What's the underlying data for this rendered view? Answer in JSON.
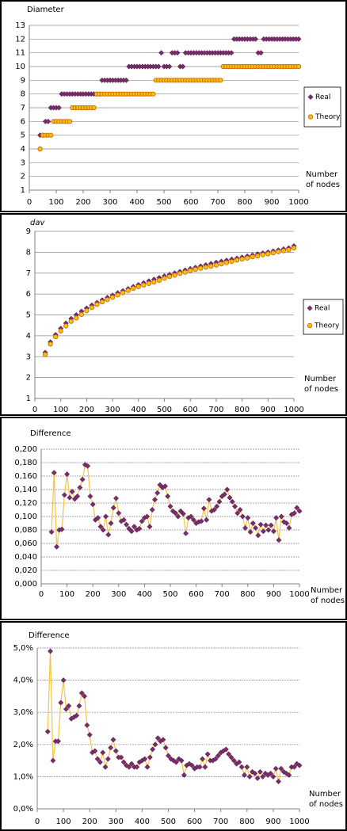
{
  "chart_data": [
    {
      "type": "scatter",
      "y_label": "Diameter",
      "x_label": [
        "Number",
        "of nodes"
      ],
      "x": [
        40,
        50,
        60,
        70,
        80,
        90,
        100,
        110,
        120,
        130,
        140,
        150,
        160,
        170,
        180,
        190,
        200,
        210,
        220,
        230,
        240,
        250,
        260,
        270,
        280,
        290,
        300,
        310,
        320,
        330,
        340,
        350,
        360,
        370,
        380,
        390,
        400,
        410,
        420,
        430,
        440,
        450,
        460,
        470,
        480,
        490,
        500,
        510,
        520,
        530,
        540,
        550,
        560,
        570,
        580,
        590,
        600,
        610,
        620,
        630,
        640,
        650,
        660,
        670,
        680,
        690,
        700,
        710,
        720,
        730,
        740,
        750,
        760,
        770,
        780,
        790,
        800,
        810,
        820,
        830,
        840,
        850,
        860,
        870,
        880,
        890,
        900,
        910,
        920,
        930,
        940,
        950,
        960,
        970,
        980,
        990,
        1000
      ],
      "series": [
        {
          "name": "Real",
          "color": "#7b2d6b",
          "marker": "diamond",
          "values": [
            5,
            5,
            6,
            6,
            7,
            7,
            7,
            7,
            8,
            8,
            8,
            8,
            8,
            8,
            8,
            8,
            8,
            8,
            8,
            8,
            8,
            8,
            8,
            9,
            9,
            9,
            9,
            9,
            9,
            9,
            9,
            9,
            9,
            10,
            10,
            10,
            10,
            10,
            10,
            10,
            10,
            10,
            10,
            10,
            10,
            11,
            10,
            10,
            10,
            11,
            11,
            11,
            10,
            10,
            11,
            11,
            11,
            11,
            11,
            11,
            11,
            11,
            11,
            11,
            11,
            11,
            11,
            11,
            11,
            11,
            11,
            11,
            12,
            12,
            12,
            12,
            12,
            12,
            12,
            12,
            12,
            11,
            11,
            12,
            12,
            12,
            12,
            12,
            12,
            12,
            12,
            12,
            12,
            12,
            12,
            12,
            12
          ]
        },
        {
          "name": "Theory",
          "color": "#ffc000",
          "marker": "circle",
          "values": [
            4,
            5,
            5,
            5,
            5,
            6,
            6,
            6,
            6,
            6,
            6,
            6,
            7,
            7,
            7,
            7,
            7,
            7,
            7,
            7,
            7,
            8,
            8,
            8,
            8,
            8,
            8,
            8,
            8,
            8,
            8,
            8,
            8,
            8,
            8,
            8,
            8,
            8,
            8,
            8,
            8,
            8,
            8,
            9,
            9,
            9,
            9,
            9,
            9,
            9,
            9,
            9,
            9,
            9,
            9,
            9,
            9,
            9,
            9,
            9,
            9,
            9,
            9,
            9,
            9,
            9,
            9,
            9,
            10,
            10,
            10,
            10,
            10,
            10,
            10,
            10,
            10,
            10,
            10,
            10,
            10,
            10,
            10,
            10,
            10,
            10,
            10,
            10,
            10,
            10,
            10,
            10,
            10,
            10,
            10,
            10,
            10
          ]
        }
      ],
      "xlim": [
        0,
        1000
      ],
      "xticks": [
        0,
        100,
        200,
        300,
        400,
        500,
        600,
        700,
        800,
        900,
        1000
      ],
      "ylim": [
        1,
        13
      ],
      "yticks": [
        1,
        2,
        3,
        4,
        5,
        6,
        7,
        8,
        9,
        10,
        11,
        12,
        13
      ],
      "grid": true,
      "legend": "right"
    },
    {
      "type": "scatter",
      "y_label": "dav",
      "x_label": [
        "Number",
        "of nodes"
      ],
      "x": [
        40,
        60,
        80,
        100,
        120,
        140,
        160,
        180,
        200,
        220,
        240,
        260,
        280,
        300,
        320,
        340,
        360,
        380,
        400,
        420,
        440,
        460,
        480,
        500,
        520,
        540,
        560,
        580,
        600,
        620,
        640,
        660,
        680,
        700,
        720,
        740,
        760,
        780,
        800,
        820,
        840,
        860,
        880,
        900,
        920,
        940,
        960,
        980,
        1000
      ],
      "series": [
        {
          "name": "Real",
          "color": "#7b2d6b",
          "marker": "diamond",
          "values": [
            3.2,
            3.7,
            4.05,
            4.35,
            4.6,
            4.82,
            5.0,
            5.17,
            5.32,
            5.46,
            5.59,
            5.71,
            5.83,
            5.94,
            6.05,
            6.15,
            6.25,
            6.35,
            6.44,
            6.53,
            6.62,
            6.7,
            6.78,
            6.86,
            6.93,
            7.0,
            7.07,
            7.14,
            7.21,
            7.27,
            7.33,
            7.39,
            7.45,
            7.51,
            7.56,
            7.61,
            7.66,
            7.71,
            7.76,
            7.81,
            7.86,
            7.91,
            7.96,
            8.0,
            8.05,
            8.1,
            8.15,
            8.2,
            8.3
          ]
        },
        {
          "name": "Theory",
          "color": "#ffc000",
          "marker": "circle",
          "values": [
            3.1,
            3.6,
            3.95,
            4.23,
            4.47,
            4.69,
            4.85,
            5.02,
            5.2,
            5.35,
            5.5,
            5.62,
            5.73,
            5.84,
            5.95,
            6.06,
            6.17,
            6.27,
            6.35,
            6.43,
            6.5,
            6.57,
            6.65,
            6.75,
            6.83,
            6.9,
            6.98,
            7.04,
            7.12,
            7.18,
            7.23,
            7.28,
            7.33,
            7.38,
            7.44,
            7.5,
            7.55,
            7.62,
            7.67,
            7.72,
            7.78,
            7.82,
            7.88,
            7.92,
            7.97,
            8.02,
            8.07,
            8.12,
            8.2
          ]
        }
      ],
      "xlim": [
        0,
        1000
      ],
      "xticks": [
        0,
        100,
        200,
        300,
        400,
        500,
        600,
        700,
        800,
        900,
        1000
      ],
      "ylim": [
        1,
        9
      ],
      "yticks": [
        1,
        2,
        3,
        4,
        5,
        6,
        7,
        8,
        9
      ],
      "grid": true,
      "legend": "right"
    },
    {
      "type": "line",
      "y_label": "Difference",
      "x_label": [
        "Number",
        "of nodes"
      ],
      "color": "#f5c242",
      "marker_color": "#7b2d6b",
      "x": [
        40,
        50,
        60,
        70,
        80,
        90,
        100,
        110,
        120,
        130,
        140,
        150,
        160,
        170,
        180,
        190,
        200,
        210,
        220,
        230,
        240,
        250,
        260,
        270,
        280,
        290,
        300,
        310,
        320,
        330,
        340,
        350,
        360,
        370,
        380,
        390,
        400,
        410,
        420,
        430,
        440,
        450,
        460,
        470,
        480,
        490,
        500,
        510,
        520,
        530,
        540,
        550,
        560,
        570,
        580,
        590,
        600,
        610,
        620,
        630,
        640,
        650,
        660,
        670,
        680,
        690,
        700,
        710,
        720,
        730,
        740,
        750,
        760,
        770,
        780,
        790,
        800,
        810,
        820,
        830,
        840,
        850,
        860,
        870,
        880,
        890,
        900,
        910,
        920,
        930,
        940,
        950,
        960,
        970,
        980,
        990,
        1000
      ],
      "values": [
        0.077,
        0.165,
        0.055,
        0.08,
        0.081,
        0.132,
        0.163,
        0.128,
        0.137,
        0.126,
        0.13,
        0.143,
        0.155,
        0.177,
        0.175,
        0.13,
        0.118,
        0.095,
        0.098,
        0.085,
        0.08,
        0.1,
        0.073,
        0.09,
        0.113,
        0.127,
        0.105,
        0.093,
        0.095,
        0.088,
        0.082,
        0.078,
        0.085,
        0.08,
        0.082,
        0.093,
        0.098,
        0.1,
        0.085,
        0.11,
        0.125,
        0.135,
        0.147,
        0.143,
        0.145,
        0.13,
        0.115,
        0.108,
        0.105,
        0.1,
        0.108,
        0.104,
        0.075,
        0.098,
        0.1,
        0.095,
        0.09,
        0.092,
        0.093,
        0.112,
        0.095,
        0.125,
        0.108,
        0.11,
        0.115,
        0.122,
        0.13,
        0.133,
        0.14,
        0.128,
        0.122,
        0.115,
        0.105,
        0.11,
        0.1,
        0.083,
        0.098,
        0.077,
        0.09,
        0.083,
        0.072,
        0.088,
        0.078,
        0.087,
        0.08,
        0.087,
        0.078,
        0.098,
        0.065,
        0.1,
        0.092,
        0.09,
        0.083,
        0.103,
        0.105,
        0.113,
        0.108
      ],
      "xlim": [
        0,
        1000
      ],
      "xticks": [
        0,
        100,
        200,
        300,
        400,
        500,
        600,
        700,
        800,
        900,
        1000
      ],
      "ylim": [
        0,
        0.2
      ],
      "yticks": [
        {
          "value": 0,
          "label": "0,000"
        },
        {
          "value": 0.02,
          "label": "0,020"
        },
        {
          "value": 0.04,
          "label": "0,040"
        },
        {
          "value": 0.06,
          "label": "0,060"
        },
        {
          "value": 0.08,
          "label": "0,080"
        },
        {
          "value": 0.1,
          "label": "0,100"
        },
        {
          "value": 0.12,
          "label": "0,120"
        },
        {
          "value": 0.14,
          "label": "0,140"
        },
        {
          "value": 0.16,
          "label": "0,160"
        },
        {
          "value": 0.18,
          "label": "0,180"
        },
        {
          "value": 0.2,
          "label": "0,200"
        }
      ],
      "grid": true
    },
    {
      "type": "line",
      "y_label": "Difference",
      "x_label": [
        "Number",
        "of nodes"
      ],
      "color": "#f5c242",
      "marker_color": "#7b2d6b",
      "x": [
        40,
        50,
        60,
        70,
        80,
        90,
        100,
        110,
        120,
        130,
        140,
        150,
        160,
        170,
        180,
        190,
        200,
        210,
        220,
        230,
        240,
        250,
        260,
        270,
        280,
        290,
        300,
        310,
        320,
        330,
        340,
        350,
        360,
        370,
        380,
        390,
        400,
        410,
        420,
        430,
        440,
        450,
        460,
        470,
        480,
        490,
        500,
        510,
        520,
        530,
        540,
        550,
        560,
        570,
        580,
        590,
        600,
        610,
        620,
        630,
        640,
        650,
        660,
        670,
        680,
        690,
        700,
        710,
        720,
        730,
        740,
        750,
        760,
        770,
        780,
        790,
        800,
        810,
        820,
        830,
        840,
        850,
        860,
        870,
        880,
        890,
        900,
        910,
        920,
        930,
        940,
        950,
        960,
        970,
        980,
        990,
        1000
      ],
      "values": [
        2.4,
        4.9,
        1.5,
        2.1,
        2.1,
        3.3,
        4.0,
        3.1,
        3.2,
        2.8,
        2.85,
        2.9,
        3.2,
        3.6,
        3.5,
        2.6,
        2.3,
        1.75,
        1.8,
        1.55,
        1.45,
        1.75,
        1.3,
        1.55,
        1.9,
        2.15,
        1.8,
        1.6,
        1.6,
        1.45,
        1.35,
        1.3,
        1.4,
        1.3,
        1.3,
        1.45,
        1.5,
        1.55,
        1.3,
        1.6,
        1.85,
        2.0,
        2.2,
        2.1,
        2.15,
        1.9,
        1.65,
        1.55,
        1.5,
        1.45,
        1.55,
        1.5,
        1.05,
        1.35,
        1.4,
        1.35,
        1.25,
        1.3,
        1.3,
        1.55,
        1.3,
        1.7,
        1.5,
        1.5,
        1.55,
        1.65,
        1.75,
        1.8,
        1.85,
        1.7,
        1.6,
        1.5,
        1.4,
        1.45,
        1.3,
        1.05,
        1.3,
        1.0,
        1.15,
        1.1,
        0.95,
        1.15,
        1.0,
        1.1,
        1.05,
        1.1,
        1.0,
        1.25,
        0.85,
        1.25,
        1.15,
        1.1,
        1.05,
        1.3,
        1.3,
        1.4,
        1.35
      ],
      "xlim": [
        0,
        1000
      ],
      "xticks": [
        0,
        100,
        200,
        300,
        400,
        500,
        600,
        700,
        800,
        900,
        1000
      ],
      "ylim": [
        0,
        5
      ],
      "yticks": [
        {
          "value": 0,
          "label": "0,0%"
        },
        {
          "value": 1,
          "label": "1,0%"
        },
        {
          "value": 2,
          "label": "2,0%"
        },
        {
          "value": 3,
          "label": "3,0%"
        },
        {
          "value": 4,
          "label": "4,0%"
        },
        {
          "value": 5,
          "label": "5,0%"
        }
      ],
      "grid": true
    }
  ]
}
